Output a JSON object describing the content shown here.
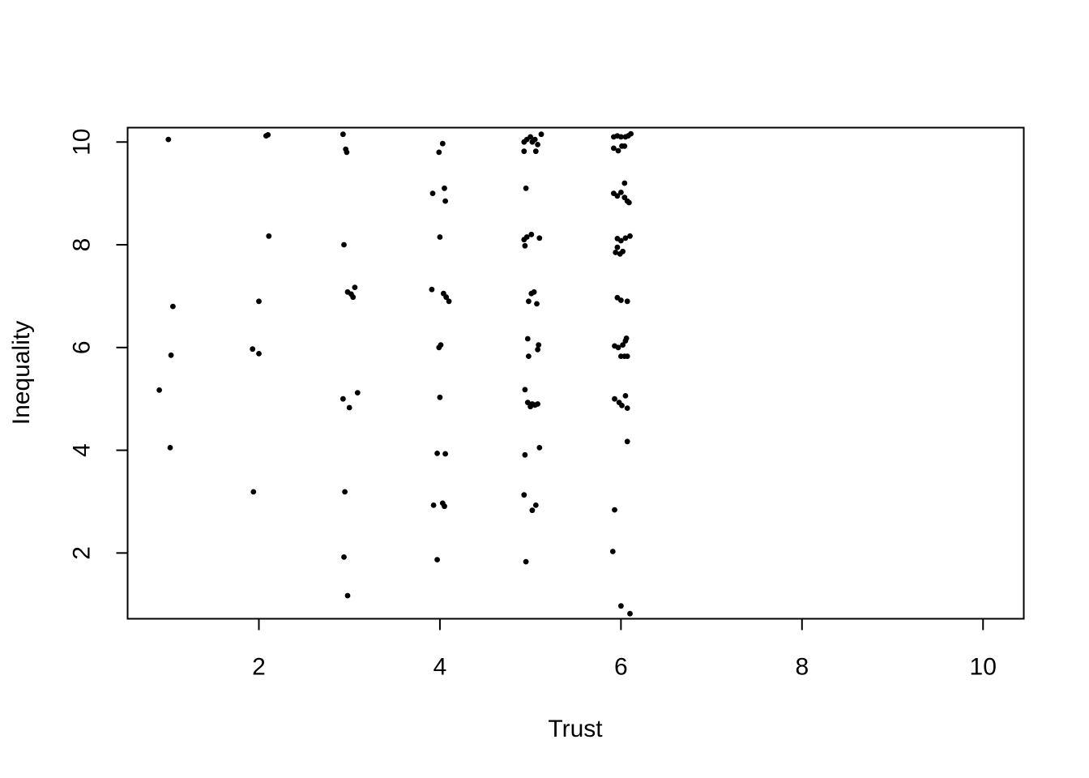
{
  "chart_data": {
    "type": "scatter",
    "title": "",
    "xlabel": "Trust",
    "ylabel": "Inequality",
    "xlim": [
      0.55,
      10.45
    ],
    "ylim": [
      0.72,
      10.28
    ],
    "x_ticks": [
      "2",
      "4",
      "6",
      "8",
      "10"
    ],
    "y_ticks": [
      "2",
      "4",
      "6",
      "8",
      "10"
    ],
    "grid": false,
    "legend": "none",
    "point_color": "#000000",
    "points": [
      [
        1.0,
        10.05
      ],
      [
        0.9,
        5.17
      ],
      [
        1.05,
        6.8
      ],
      [
        1.03,
        5.85
      ],
      [
        1.02,
        4.05
      ],
      [
        2.08,
        10.12
      ],
      [
        2.1,
        10.14
      ],
      [
        2.11,
        8.17
      ],
      [
        2.0,
        6.9
      ],
      [
        1.93,
        5.97
      ],
      [
        2.0,
        5.88
      ],
      [
        1.94,
        3.19
      ],
      [
        2.93,
        10.15
      ],
      [
        2.96,
        9.86
      ],
      [
        2.97,
        9.8
      ],
      [
        2.94,
        8.0
      ],
      [
        2.98,
        7.08
      ],
      [
        3.02,
        7.04
      ],
      [
        3.04,
        6.98
      ],
      [
        3.06,
        7.17
      ],
      [
        2.93,
        5.0
      ],
      [
        3.0,
        4.83
      ],
      [
        3.09,
        5.12
      ],
      [
        2.95,
        3.19
      ],
      [
        2.94,
        1.92
      ],
      [
        2.98,
        1.17
      ],
      [
        4.03,
        9.97
      ],
      [
        3.99,
        9.8
      ],
      [
        3.92,
        9.0
      ],
      [
        4.05,
        9.1
      ],
      [
        4.06,
        8.85
      ],
      [
        4.0,
        8.15
      ],
      [
        3.91,
        7.13
      ],
      [
        4.04,
        7.05
      ],
      [
        4.07,
        6.98
      ],
      [
        4.1,
        6.9
      ],
      [
        3.99,
        6.0
      ],
      [
        4.01,
        6.05
      ],
      [
        4.0,
        5.03
      ],
      [
        3.97,
        3.94
      ],
      [
        4.06,
        3.93
      ],
      [
        3.93,
        2.93
      ],
      [
        4.03,
        2.97
      ],
      [
        4.05,
        2.91
      ],
      [
        3.97,
        1.87
      ],
      [
        4.93,
        10.0
      ],
      [
        4.96,
        10.05
      ],
      [
        5.0,
        10.1
      ],
      [
        5.02,
        10.0
      ],
      [
        5.05,
        10.05
      ],
      [
        5.08,
        9.95
      ],
      [
        5.12,
        10.15
      ],
      [
        5.06,
        9.82
      ],
      [
        4.93,
        9.82
      ],
      [
        4.95,
        9.1
      ],
      [
        4.93,
        8.1
      ],
      [
        4.96,
        8.15
      ],
      [
        4.94,
        7.98
      ],
      [
        5.01,
        8.2
      ],
      [
        5.1,
        8.13
      ],
      [
        5.01,
        7.05
      ],
      [
        5.04,
        7.08
      ],
      [
        4.98,
        6.9
      ],
      [
        5.07,
        6.85
      ],
      [
        4.97,
        6.17
      ],
      [
        5.09,
        6.05
      ],
      [
        5.08,
        5.96
      ],
      [
        4.98,
        5.83
      ],
      [
        4.94,
        5.18
      ],
      [
        4.97,
        4.93
      ],
      [
        5.0,
        4.85
      ],
      [
        5.02,
        4.9
      ],
      [
        5.05,
        4.88
      ],
      [
        5.08,
        4.9
      ],
      [
        4.94,
        3.91
      ],
      [
        5.1,
        4.05
      ],
      [
        4.93,
        3.13
      ],
      [
        5.02,
        2.83
      ],
      [
        5.06,
        2.93
      ],
      [
        4.95,
        1.83
      ],
      [
        5.92,
        10.1
      ],
      [
        5.96,
        10.12
      ],
      [
        6.0,
        10.1
      ],
      [
        6.05,
        10.1
      ],
      [
        6.08,
        10.12
      ],
      [
        6.11,
        10.16
      ],
      [
        5.92,
        9.88
      ],
      [
        5.97,
        9.83
      ],
      [
        6.01,
        9.92
      ],
      [
        6.04,
        9.92
      ],
      [
        6.04,
        9.2
      ],
      [
        5.92,
        9.0
      ],
      [
        5.96,
        8.95
      ],
      [
        6.0,
        9.02
      ],
      [
        6.04,
        8.92
      ],
      [
        6.07,
        8.85
      ],
      [
        6.09,
        8.82
      ],
      [
        5.96,
        8.12
      ],
      [
        6.0,
        8.08
      ],
      [
        6.05,
        8.13
      ],
      [
        6.1,
        8.17
      ],
      [
        5.96,
        7.95
      ],
      [
        5.94,
        7.85
      ],
      [
        5.99,
        7.82
      ],
      [
        6.02,
        7.87
      ],
      [
        5.96,
        6.97
      ],
      [
        6.0,
        6.92
      ],
      [
        6.07,
        6.9
      ],
      [
        5.93,
        6.03
      ],
      [
        5.97,
        6.0
      ],
      [
        6.02,
        6.05
      ],
      [
        6.05,
        6.13
      ],
      [
        6.06,
        6.18
      ],
      [
        6.0,
        5.83
      ],
      [
        6.04,
        5.83
      ],
      [
        6.07,
        5.83
      ],
      [
        5.93,
        5.0
      ],
      [
        5.98,
        4.93
      ],
      [
        6.05,
        5.06
      ],
      [
        6.01,
        4.87
      ],
      [
        6.07,
        4.82
      ],
      [
        6.07,
        4.17
      ],
      [
        5.93,
        2.84
      ],
      [
        5.91,
        2.03
      ],
      [
        6.0,
        0.97
      ],
      [
        6.1,
        0.82
      ]
    ]
  }
}
